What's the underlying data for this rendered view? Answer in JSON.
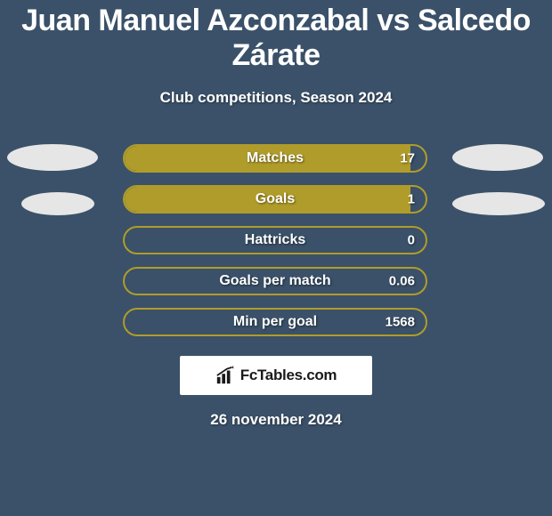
{
  "header": {
    "title": "Juan Manuel Azconzabal vs Salcedo Zárate",
    "subtitle": "Club competitions, Season 2024"
  },
  "stats": {
    "bar_border_color": "#b09c2a",
    "bar_fill_color": "#b09c2a",
    "rows": [
      {
        "label": "Matches",
        "value": "17",
        "fill_pct": 95
      },
      {
        "label": "Goals",
        "value": "1",
        "fill_pct": 95
      },
      {
        "label": "Hattricks",
        "value": "0",
        "fill_pct": 0
      },
      {
        "label": "Goals per match",
        "value": "0.06",
        "fill_pct": 0
      },
      {
        "label": "Min per goal",
        "value": "1568",
        "fill_pct": 0
      }
    ]
  },
  "branding": {
    "name": "FcTables.com"
  },
  "footer": {
    "date": "26 november 2024"
  },
  "colors": {
    "page_bg": "#3a5169",
    "text": "#ffffff",
    "ellipse": "#e6e6e6",
    "logo_bg": "#ffffff",
    "logo_text": "#1a1a1a"
  }
}
